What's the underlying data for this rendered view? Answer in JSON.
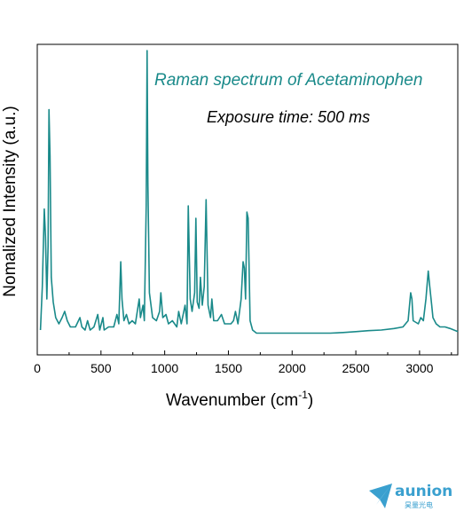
{
  "chart_data": {
    "type": "line",
    "title": "Raman spectrum of Acetaminophen",
    "subtitle": "Exposure time: 500 ms",
    "ylabel": "Nomalized Intensity (a.u.)",
    "xlabel_main": "Wavenumber (cm",
    "xlabel_sup": "-1",
    "xlabel_end": ")",
    "xlim": [
      0,
      3300
    ],
    "ylim": [
      0,
      1.0
    ],
    "xticks": [
      0,
      500,
      1000,
      1500,
      2000,
      2500,
      3000
    ],
    "yticks_visible": false,
    "grid": false,
    "line_color": "#1a8a8a",
    "title_color": "#1a8a8a",
    "baseline": 0.07,
    "points": [
      [
        25,
        0.08
      ],
      [
        40,
        0.22
      ],
      [
        55,
        0.47
      ],
      [
        65,
        0.38
      ],
      [
        75,
        0.18
      ],
      [
        85,
        0.35
      ],
      [
        92,
        0.79
      ],
      [
        100,
        0.64
      ],
      [
        110,
        0.25
      ],
      [
        125,
        0.17
      ],
      [
        145,
        0.12
      ],
      [
        170,
        0.1
      ],
      [
        195,
        0.12
      ],
      [
        215,
        0.14
      ],
      [
        235,
        0.11
      ],
      [
        260,
        0.09
      ],
      [
        300,
        0.09
      ],
      [
        335,
        0.12
      ],
      [
        350,
        0.09
      ],
      [
        375,
        0.08
      ],
      [
        395,
        0.11
      ],
      [
        415,
        0.08
      ],
      [
        445,
        0.09
      ],
      [
        475,
        0.13
      ],
      [
        490,
        0.08
      ],
      [
        515,
        0.12
      ],
      [
        525,
        0.08
      ],
      [
        560,
        0.09
      ],
      [
        600,
        0.09
      ],
      [
        625,
        0.13
      ],
      [
        640,
        0.1
      ],
      [
        655,
        0.3
      ],
      [
        665,
        0.18
      ],
      [
        680,
        0.11
      ],
      [
        700,
        0.13
      ],
      [
        720,
        0.1
      ],
      [
        745,
        0.11
      ],
      [
        770,
        0.1
      ],
      [
        800,
        0.18
      ],
      [
        810,
        0.12
      ],
      [
        830,
        0.16
      ],
      [
        840,
        0.11
      ],
      [
        855,
        0.48
      ],
      [
        862,
        0.98
      ],
      [
        868,
        0.55
      ],
      [
        880,
        0.2
      ],
      [
        905,
        0.12
      ],
      [
        935,
        0.11
      ],
      [
        960,
        0.14
      ],
      [
        970,
        0.2
      ],
      [
        985,
        0.12
      ],
      [
        1010,
        0.13
      ],
      [
        1030,
        0.1
      ],
      [
        1060,
        0.11
      ],
      [
        1095,
        0.09
      ],
      [
        1110,
        0.14
      ],
      [
        1130,
        0.1
      ],
      [
        1160,
        0.16
      ],
      [
        1175,
        0.1
      ],
      [
        1185,
        0.48
      ],
      [
        1200,
        0.18
      ],
      [
        1215,
        0.14
      ],
      [
        1235,
        0.2
      ],
      [
        1245,
        0.44
      ],
      [
        1255,
        0.17
      ],
      [
        1270,
        0.15
      ],
      [
        1280,
        0.25
      ],
      [
        1295,
        0.16
      ],
      [
        1310,
        0.22
      ],
      [
        1325,
        0.5
      ],
      [
        1340,
        0.16
      ],
      [
        1360,
        0.12
      ],
      [
        1370,
        0.18
      ],
      [
        1385,
        0.11
      ],
      [
        1415,
        0.11
      ],
      [
        1445,
        0.13
      ],
      [
        1470,
        0.1
      ],
      [
        1505,
        0.1
      ],
      [
        1520,
        0.1
      ],
      [
        1540,
        0.11
      ],
      [
        1555,
        0.14
      ],
      [
        1575,
        0.1
      ],
      [
        1600,
        0.18
      ],
      [
        1615,
        0.3
      ],
      [
        1625,
        0.28
      ],
      [
        1635,
        0.18
      ],
      [
        1645,
        0.46
      ],
      [
        1655,
        0.44
      ],
      [
        1670,
        0.11
      ],
      [
        1690,
        0.08
      ],
      [
        1720,
        0.07
      ],
      [
        1800,
        0.07
      ],
      [
        1900,
        0.07
      ],
      [
        2000,
        0.07
      ],
      [
        2100,
        0.07
      ],
      [
        2200,
        0.07
      ],
      [
        2300,
        0.07
      ],
      [
        2400,
        0.072
      ],
      [
        2500,
        0.075
      ],
      [
        2600,
        0.078
      ],
      [
        2700,
        0.08
      ],
      [
        2800,
        0.085
      ],
      [
        2870,
        0.09
      ],
      [
        2910,
        0.11
      ],
      [
        2930,
        0.2
      ],
      [
        2940,
        0.18
      ],
      [
        2950,
        0.11
      ],
      [
        2990,
        0.1
      ],
      [
        3010,
        0.12
      ],
      [
        3030,
        0.11
      ],
      [
        3050,
        0.18
      ],
      [
        3068,
        0.27
      ],
      [
        3080,
        0.22
      ],
      [
        3095,
        0.16
      ],
      [
        3105,
        0.12
      ],
      [
        3130,
        0.1
      ],
      [
        3160,
        0.09
      ],
      [
        3200,
        0.09
      ],
      [
        3240,
        0.085
      ],
      [
        3270,
        0.08
      ],
      [
        3300,
        0.075
      ]
    ]
  },
  "logo": {
    "name": "aunion",
    "sub": "昊量光电"
  }
}
